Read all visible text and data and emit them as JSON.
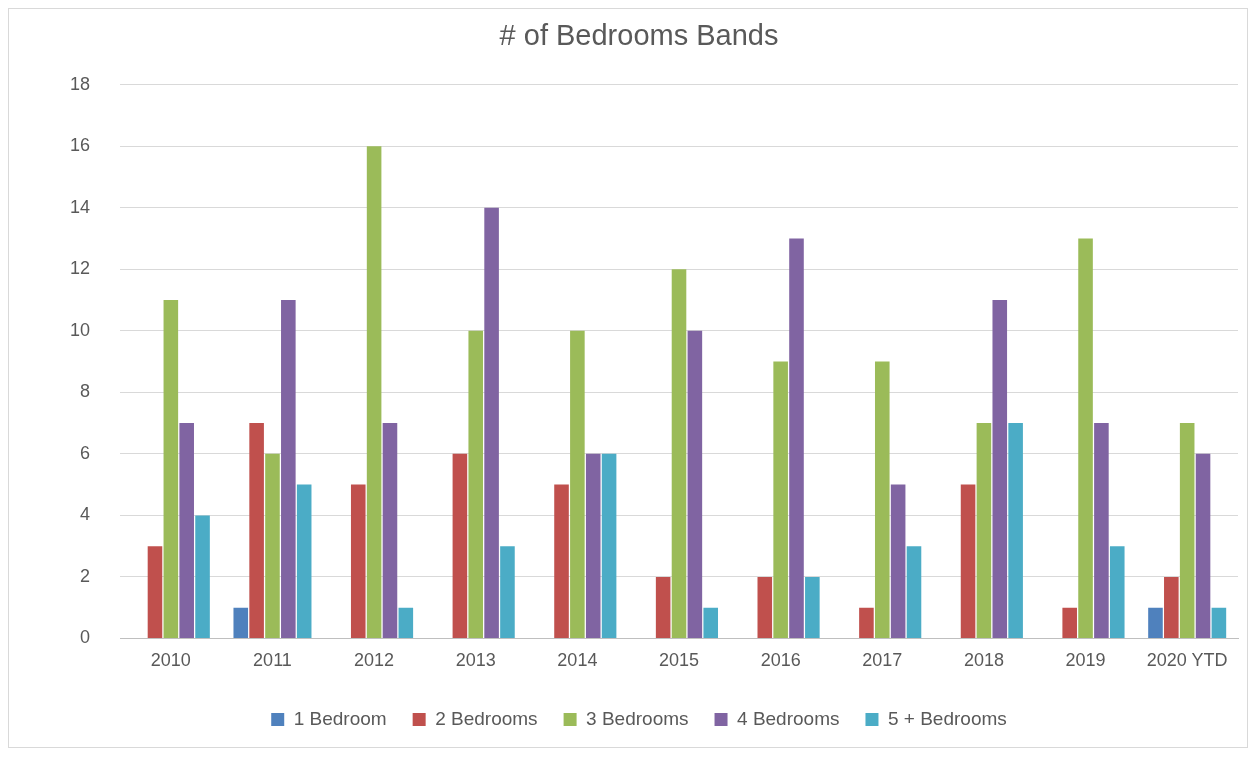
{
  "chart_data": {
    "type": "bar",
    "title": "# of Bedrooms Bands",
    "categories": [
      "2010",
      "2011",
      "2012",
      "2013",
      "2014",
      "2015",
      "2016",
      "2017",
      "2018",
      "2019",
      "2020 YTD"
    ],
    "series": [
      {
        "name": "1 Bedroom",
        "color": "#4f81bd",
        "values": [
          0,
          1,
          0,
          0,
          0,
          0,
          0,
          0,
          0,
          0,
          1
        ]
      },
      {
        "name": "2 Bedrooms",
        "color": "#c0504d",
        "values": [
          3,
          7,
          5,
          6,
          5,
          2,
          2,
          1,
          5,
          1,
          2
        ]
      },
      {
        "name": "3 Bedrooms",
        "color": "#9bbb59",
        "values": [
          11,
          6,
          16,
          10,
          10,
          12,
          9,
          9,
          7,
          13,
          7
        ]
      },
      {
        "name": "4 Bedrooms",
        "color": "#8064a2",
        "values": [
          7,
          11,
          7,
          14,
          6,
          10,
          13,
          5,
          11,
          7,
          6
        ]
      },
      {
        "name": "5 + Bedrooms",
        "color": "#4bacc6",
        "values": [
          4,
          5,
          1,
          3,
          6,
          1,
          2,
          3,
          7,
          3,
          1
        ]
      }
    ],
    "ylim": [
      0,
      18
    ],
    "yticks": [
      0,
      2,
      4,
      6,
      8,
      10,
      12,
      14,
      16,
      18
    ],
    "grid": "y",
    "legend": "bottom"
  }
}
